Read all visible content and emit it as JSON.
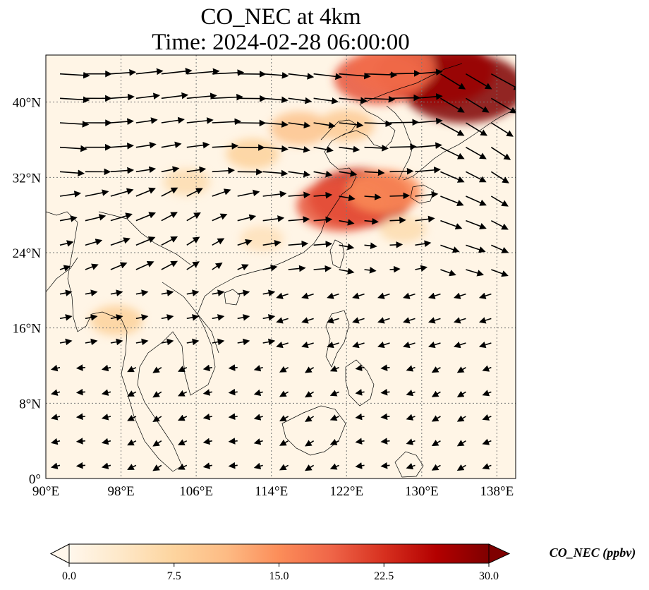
{
  "figure": {
    "title_line1": "CO_NEC at 4km",
    "title_line2": "Time: 2024-02-28 06:00:00"
  },
  "map": {
    "lon_range": [
      90,
      140
    ],
    "lat_range": [
      0,
      45
    ],
    "x_ticks": [
      {
        "value": 90,
        "label": "90°E"
      },
      {
        "value": 98,
        "label": "98°E"
      },
      {
        "value": 106,
        "label": "106°E"
      },
      {
        "value": 114,
        "label": "114°E"
      },
      {
        "value": 122,
        "label": "122°E"
      },
      {
        "value": 130,
        "label": "130°E"
      },
      {
        "value": 138,
        "label": "138°E"
      }
    ],
    "y_ticks": [
      {
        "value": 0,
        "label": "0°"
      },
      {
        "value": 8,
        "label": "8°N"
      },
      {
        "value": 16,
        "label": "16°N"
      },
      {
        "value": 24,
        "label": "24°N"
      },
      {
        "value": 32,
        "label": "32°N"
      },
      {
        "value": 40,
        "label": "40°N"
      }
    ],
    "gridlines": true,
    "field": "CO_NEC",
    "units": "ppbv",
    "plumes": [
      {
        "lon": 134.5,
        "lat": 41.5,
        "value": 30,
        "note": "max plume NE"
      },
      {
        "lon": 131.5,
        "lat": 43.2,
        "value": 28
      },
      {
        "lon": 125.5,
        "lat": 42.5,
        "value": 20
      },
      {
        "lon": 127,
        "lat": 43.6,
        "value": 18
      },
      {
        "lon": 123.5,
        "lat": 29.8,
        "value": 24
      },
      {
        "lon": 121.5,
        "lat": 29.0,
        "value": 20
      },
      {
        "lon": 126,
        "lat": 30.5,
        "value": 15
      },
      {
        "lon": 117,
        "lat": 37.2,
        "value": 10
      },
      {
        "lon": 122,
        "lat": 37.5,
        "value": 9
      },
      {
        "lon": 112,
        "lat": 34.5,
        "value": 8
      },
      {
        "lon": 105,
        "lat": 31.5,
        "value": 6
      },
      {
        "lon": 97.5,
        "lat": 16.8,
        "value": 8
      },
      {
        "lon": 113,
        "lat": 25.5,
        "value": 5
      },
      {
        "lon": 128,
        "lat": 26.5,
        "value": 6
      }
    ],
    "wind_style": "quiver"
  },
  "colorbar": {
    "min": 0.0,
    "max": 30.0,
    "extend": "both",
    "colormap": "OrRd",
    "colors": [
      "#fff7ec",
      "#fee8c8",
      "#fdd49e",
      "#fdbb84",
      "#fc8d59",
      "#ef6548",
      "#d7301f",
      "#b30000",
      "#7f0000"
    ],
    "ticks": [
      {
        "value": 0.0,
        "label": "0.0"
      },
      {
        "value": 7.5,
        "label": "7.5"
      },
      {
        "value": 15.0,
        "label": "15.0"
      },
      {
        "value": 22.5,
        "label": "22.5"
      },
      {
        "value": 30.0,
        "label": "30.0"
      }
    ],
    "label": "CO_NEC (ppbv)"
  }
}
